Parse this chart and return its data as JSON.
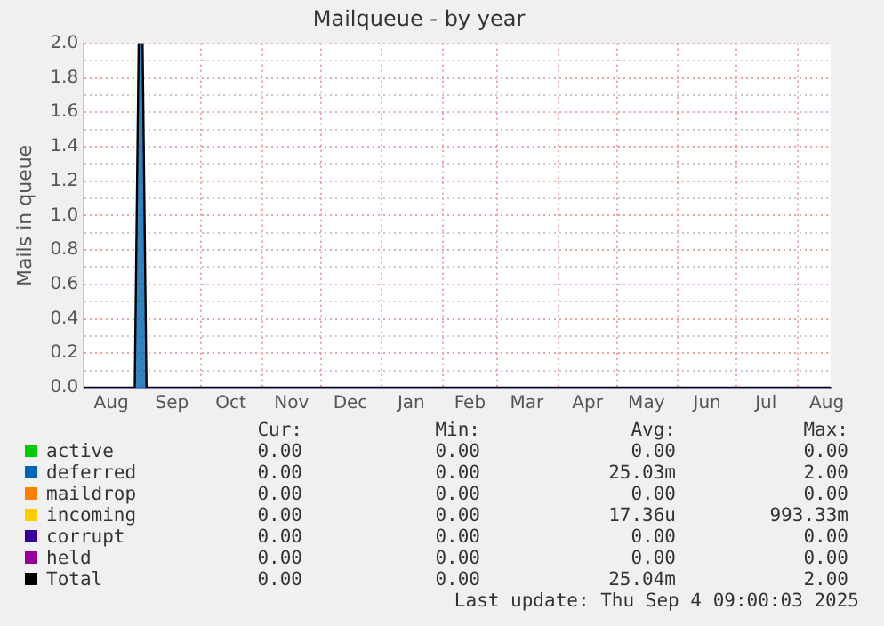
{
  "chart_data": {
    "type": "line",
    "title": "Mailqueue - by year",
    "ylabel": "Mails in queue",
    "x": [
      "2024-08-02",
      "2024-08-28",
      "2024-08-30",
      "2024-09-01",
      "2024-09-03",
      "2025-08-18"
    ],
    "xlim": [
      "2024-08-02",
      "2025-08-18"
    ],
    "xticks": [
      {
        "value": "2024-08-16",
        "label": "Aug"
      },
      {
        "value": "2024-09-01",
        "label": null
      },
      {
        "value": "2024-09-16",
        "label": "Sep"
      },
      {
        "value": "2024-10-01",
        "label": null
      },
      {
        "value": "2024-10-16",
        "label": "Oct"
      },
      {
        "value": "2024-11-01",
        "label": null
      },
      {
        "value": "2024-11-16",
        "label": "Nov"
      },
      {
        "value": "2024-12-01",
        "label": null
      },
      {
        "value": "2024-12-16",
        "label": "Dec"
      },
      {
        "value": "2025-01-01",
        "label": null
      },
      {
        "value": "2025-01-16",
        "label": "Jan"
      },
      {
        "value": "2025-02-01",
        "label": null
      },
      {
        "value": "2025-02-15",
        "label": "Feb"
      },
      {
        "value": "2025-03-01",
        "label": null
      },
      {
        "value": "2025-03-16",
        "label": "Mar"
      },
      {
        "value": "2025-04-01",
        "label": null
      },
      {
        "value": "2025-04-16",
        "label": "Apr"
      },
      {
        "value": "2025-05-01",
        "label": null
      },
      {
        "value": "2025-05-16",
        "label": "May"
      },
      {
        "value": "2025-06-01",
        "label": null
      },
      {
        "value": "2025-06-16",
        "label": "Jun"
      },
      {
        "value": "2025-07-01",
        "label": null
      },
      {
        "value": "2025-07-16",
        "label": "Jul"
      },
      {
        "value": "2025-08-01",
        "label": null
      },
      {
        "value": "2025-08-16",
        "label": "Aug"
      }
    ],
    "ylim": [
      0,
      2
    ],
    "yticks": [
      {
        "value": 0,
        "label": "0.0"
      },
      {
        "value": 0.1,
        "label": null
      },
      {
        "value": 0.2,
        "label": "0.2"
      },
      {
        "value": 0.3,
        "label": null
      },
      {
        "value": 0.4,
        "label": "0.4"
      },
      {
        "value": 0.5,
        "label": null
      },
      {
        "value": 0.6,
        "label": "0.6"
      },
      {
        "value": 0.7,
        "label": null
      },
      {
        "value": 0.8,
        "label": "0.8"
      },
      {
        "value": 0.9,
        "label": null
      },
      {
        "value": 1,
        "label": "1.0"
      },
      {
        "value": 1.1,
        "label": null
      },
      {
        "value": 1.2,
        "label": "1.2"
      },
      {
        "value": 1.3,
        "label": null
      },
      {
        "value": 1.4,
        "label": "1.4"
      },
      {
        "value": 1.5,
        "label": null
      },
      {
        "value": 1.6,
        "label": "1.6"
      },
      {
        "value": 1.7,
        "label": null
      },
      {
        "value": 1.8,
        "label": "1.8"
      },
      {
        "value": 1.9,
        "label": null
      },
      {
        "value": 2,
        "label": "2.0"
      }
    ],
    "grid": true,
    "legend": "bottom",
    "marker": "none",
    "line_style": "solid",
    "series": [
      {
        "name": "active",
        "color": "#00cc00",
        "values": [
          null,
          null,
          null,
          null,
          null,
          null
        ]
      },
      {
        "name": "deferred",
        "type": "area",
        "color": "#0066b3",
        "values": [
          null,
          0,
          2,
          2,
          0,
          null
        ]
      },
      {
        "name": "maildrop",
        "color": "#ff8000",
        "values": [
          null,
          null,
          null,
          null,
          null,
          null
        ]
      },
      {
        "name": "incoming",
        "color": "#ffcc00",
        "values": [
          null,
          null,
          null,
          null,
          null,
          null
        ]
      },
      {
        "name": "corrupt",
        "color": "#330099",
        "values": [
          null,
          null,
          null,
          null,
          null,
          null
        ]
      },
      {
        "name": "held",
        "color": "#990099",
        "values": [
          null,
          null,
          null,
          null,
          null,
          null
        ]
      },
      {
        "name": "Total",
        "color": "#000000",
        "values": [
          0,
          0,
          2,
          2,
          0,
          0
        ]
      }
    ],
    "annotations": [
      "Cur:",
      "Min:",
      "Avg:",
      "Max:",
      "0.00",
      "0.00",
      "0.00",
      "0.00",
      "0.00",
      "0.00",
      "25.03m",
      "2.00",
      "0.00",
      "0.00",
      "0.00",
      "0.00",
      "0.00",
      "0.00",
      "17.36u",
      "993.33m",
      "0.00",
      "0.00",
      "0.00",
      "0.00",
      "0.00",
      "0.00",
      "0.00",
      "0.00",
      "0.00",
      "0.00",
      "25.04m",
      "2.00",
      "Last update:  Thu Sep  4 09:00:03 2025"
    ]
  }
}
